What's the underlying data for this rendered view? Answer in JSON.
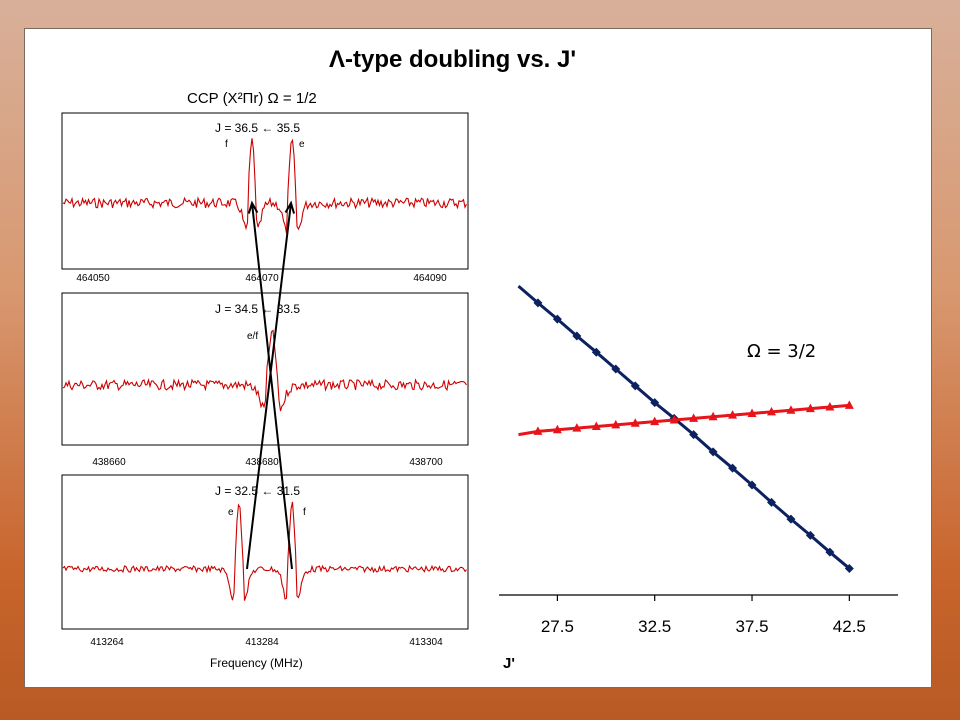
{
  "slide": {
    "title": "Λ-type doubling vs. J'",
    "subtitle": "CCP (X²Πr) Ω = 1/2"
  },
  "colors": {
    "spectrum": "#cc0000",
    "omega_half": "#e8141a",
    "omega_three_halves": "#0c2260",
    "arrow": "#000000"
  },
  "spectra": [
    {
      "transition": "J = 36.5 ← 35.5",
      "labels": [
        "f",
        "e"
      ],
      "ticks": [
        "464050",
        "464070",
        "464090"
      ]
    },
    {
      "transition": "J = 34.5 ← 33.5",
      "labels": [
        "e/f"
      ],
      "ticks": [
        "438660",
        "438680",
        "438700"
      ]
    },
    {
      "transition": "J = 32.5 ← 31.5",
      "labels": [
        "e",
        "f"
      ],
      "ticks": [
        "413264",
        "413284",
        "413304"
      ]
    }
  ],
  "frequency_label": "Frequency (MHz)",
  "chart_data": {
    "type": "line",
    "xlabel": "J'",
    "x_ticks": [
      "27.5",
      "32.5",
      "37.5",
      "42.5"
    ],
    "annotation": "Ω = 3/2",
    "xlim": [
      24.5,
      45.0
    ],
    "ylim": [
      -2.8,
      3.4
    ],
    "series": [
      {
        "x": [
          25.5,
          26.5,
          27.5,
          28.5,
          29.5,
          30.5,
          31.5,
          32.5,
          33.5,
          34.5,
          35.5,
          36.5,
          37.5,
          38.5,
          39.5,
          40.5,
          41.5,
          42.5
        ],
        "values": [
          2.9,
          2.59,
          2.29,
          1.98,
          1.68,
          1.37,
          1.06,
          0.75,
          0.46,
          0.16,
          -0.16,
          -0.46,
          -0.77,
          -1.09,
          -1.4,
          -1.7,
          -2.01,
          -2.31
        ]
      },
      {
        "x": [
          25.5,
          26.5,
          27.5,
          28.5,
          29.5,
          30.5,
          31.5,
          32.5,
          33.5,
          34.5,
          35.5,
          36.5,
          37.5,
          38.5,
          39.5,
          40.5,
          41.5,
          42.5
        ],
        "values": [
          0.16,
          0.22,
          0.25,
          0.28,
          0.31,
          0.34,
          0.37,
          0.4,
          0.43,
          0.46,
          0.49,
          0.52,
          0.55,
          0.58,
          0.61,
          0.64,
          0.67,
          0.7
        ]
      }
    ]
  }
}
